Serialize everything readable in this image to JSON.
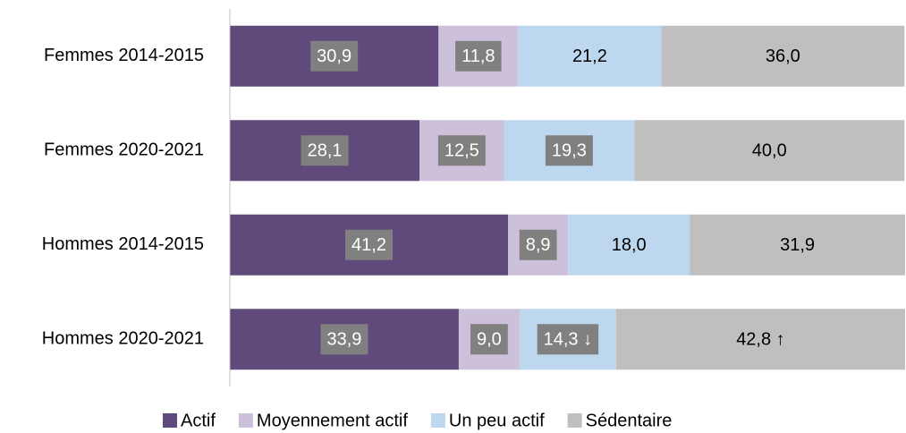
{
  "chart_data": {
    "type": "stacked_barh",
    "categories": [
      "Femmes 2014-2015",
      "Femmes 2020-2021",
      "Hommes 2014-2015",
      "Hommes 2020-2021"
    ],
    "xlim": [
      0,
      100
    ],
    "legend": "bottom",
    "label_box_color": "#808080",
    "series": [
      {
        "name": "Actif",
        "color": "#604a7b",
        "values": [
          30.9,
          28.1,
          41.2,
          33.9
        ],
        "value_labels": [
          "30,9",
          "28,1",
          "41,2",
          "33,9"
        ],
        "label_boxed": [
          true,
          true,
          true,
          true
        ]
      },
      {
        "name": "Moyennement actif",
        "color": "#ccc0da",
        "values": [
          11.8,
          12.5,
          8.9,
          9.0
        ],
        "value_labels": [
          "11,8",
          "12,5",
          "8,9",
          "9,0"
        ],
        "label_boxed": [
          true,
          true,
          true,
          true
        ]
      },
      {
        "name": "Un peu actif",
        "color": "#bdd7ee",
        "values": [
          21.2,
          19.3,
          18.0,
          14.3
        ],
        "value_labels": [
          "21,2",
          "19,3",
          "18,0",
          "14,3 ↓"
        ],
        "label_boxed": [
          false,
          true,
          false,
          true
        ]
      },
      {
        "name": "Sédentaire",
        "color": "#bfbfbf",
        "values": [
          36.0,
          40.0,
          31.9,
          42.8
        ],
        "value_labels": [
          "36,0",
          "40,0",
          "31,9",
          "42,8 ↑"
        ],
        "label_boxed": [
          false,
          false,
          false,
          false
        ]
      }
    ]
  }
}
